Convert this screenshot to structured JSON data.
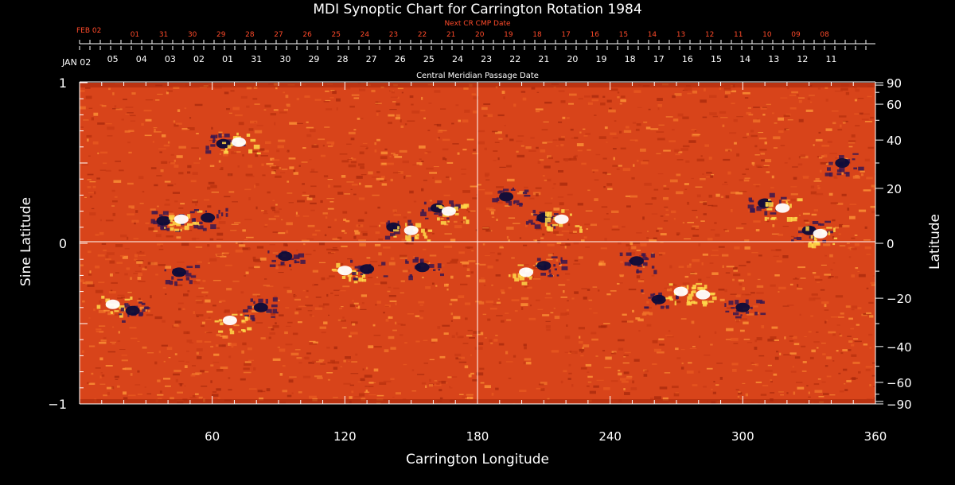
{
  "chart_data": {
    "type": "heatmap",
    "title": "MDI Synoptic Chart for Carrington Rotation 1984",
    "xlabel": "Carrington Longitude",
    "ylabel_left": "Sine Latitude",
    "ylabel_right": "Latitude",
    "xlim": [
      0,
      360
    ],
    "ylim": [
      -1,
      1
    ],
    "x_ticks": [
      60,
      120,
      180,
      240,
      300,
      360
    ],
    "y_ticks_left": [
      {
        "value": 1,
        "label": "1"
      },
      {
        "value": 0,
        "label": "0"
      },
      {
        "value": -1,
        "label": "−1"
      }
    ],
    "y_ticks_right": [
      {
        "deg": 90,
        "label": "90"
      },
      {
        "deg": 60,
        "label": "60"
      },
      {
        "deg": 40,
        "label": "40"
      },
      {
        "deg": 20,
        "label": "20"
      },
      {
        "deg": 0,
        "label": "0"
      },
      {
        "deg": -20,
        "label": "−20"
      },
      {
        "deg": -40,
        "label": "−40"
      },
      {
        "deg": -60,
        "label": "−60"
      },
      {
        "deg": -90,
        "label": "−90"
      }
    ],
    "cmp_axis_label": "Central Meridian Passage Date",
    "cmp_start_label": "JAN 02",
    "cmp_dates": [
      {
        "lon": 15,
        "label": "05"
      },
      {
        "lon": 28,
        "label": "04"
      },
      {
        "lon": 41,
        "label": "03"
      },
      {
        "lon": 54,
        "label": "02"
      },
      {
        "lon": 67,
        "label": "01"
      },
      {
        "lon": 80,
        "label": "31"
      },
      {
        "lon": 93,
        "label": "30"
      },
      {
        "lon": 106,
        "label": "29"
      },
      {
        "lon": 119,
        "label": "28"
      },
      {
        "lon": 132,
        "label": "27"
      },
      {
        "lon": 145,
        "label": "26"
      },
      {
        "lon": 158,
        "label": "25"
      },
      {
        "lon": 171,
        "label": "24"
      },
      {
        "lon": 184,
        "label": "23"
      },
      {
        "lon": 197,
        "label": "22"
      },
      {
        "lon": 210,
        "label": "21"
      },
      {
        "lon": 223,
        "label": "20"
      },
      {
        "lon": 236,
        "label": "19"
      },
      {
        "lon": 249,
        "label": "18"
      },
      {
        "lon": 262,
        "label": "17"
      },
      {
        "lon": 275,
        "label": "16"
      },
      {
        "lon": 288,
        "label": "15"
      },
      {
        "lon": 301,
        "label": "14"
      },
      {
        "lon": 314,
        "label": "13"
      },
      {
        "lon": 327,
        "label": "12"
      },
      {
        "lon": 340,
        "label": "11"
      }
    ],
    "next_cr_label": "Next CR CMP Date",
    "next_cr_start_label": "FEB 02",
    "next_cr_dates": [
      {
        "lon": 25,
        "label": "01"
      },
      {
        "lon": 38,
        "label": "31"
      },
      {
        "lon": 51,
        "label": "30"
      },
      {
        "lon": 64,
        "label": "29"
      },
      {
        "lon": 77,
        "label": "28"
      },
      {
        "lon": 90,
        "label": "27"
      },
      {
        "lon": 103,
        "label": "26"
      },
      {
        "lon": 116,
        "label": "25"
      },
      {
        "lon": 129,
        "label": "24"
      },
      {
        "lon": 142,
        "label": "23"
      },
      {
        "lon": 155,
        "label": "22"
      },
      {
        "lon": 168,
        "label": "21"
      },
      {
        "lon": 181,
        "label": "20"
      },
      {
        "lon": 194,
        "label": "19"
      },
      {
        "lon": 207,
        "label": "18"
      },
      {
        "lon": 220,
        "label": "17"
      },
      {
        "lon": 233,
        "label": "16"
      },
      {
        "lon": 246,
        "label": "15"
      },
      {
        "lon": 259,
        "label": "14"
      },
      {
        "lon": 272,
        "label": "13"
      },
      {
        "lon": 285,
        "label": "12"
      },
      {
        "lon": 298,
        "label": "11"
      },
      {
        "lon": 311,
        "label": "10"
      },
      {
        "lon": 324,
        "label": "09"
      },
      {
        "lon": 337,
        "label": "08"
      }
    ],
    "grid": "center crosshair at 180 longitude and 0 latitude",
    "colors": {
      "background_field": "#d8441a",
      "positive_polarity": "#ffffff",
      "positive_mid": "#ffd84a",
      "negative_polarity": "#0c0c3a",
      "negative_mid": "#3a1850",
      "next_cr_text": "#ff4a2a",
      "axes": "#ffffff"
    },
    "active_regions": [
      {
        "lon": 15,
        "sinlat": -0.38,
        "polarity": "positive"
      },
      {
        "lon": 24,
        "sinlat": -0.42,
        "polarity": "negative"
      },
      {
        "lon": 38,
        "sinlat": 0.14,
        "polarity": "negative"
      },
      {
        "lon": 46,
        "sinlat": 0.15,
        "polarity": "positive"
      },
      {
        "lon": 58,
        "sinlat": 0.16,
        "polarity": "negative"
      },
      {
        "lon": 45,
        "sinlat": -0.18,
        "polarity": "negative"
      },
      {
        "lon": 68,
        "sinlat": -0.48,
        "polarity": "positive"
      },
      {
        "lon": 82,
        "sinlat": -0.4,
        "polarity": "negative"
      },
      {
        "lon": 65,
        "sinlat": 0.62,
        "polarity": "negative"
      },
      {
        "lon": 72,
        "sinlat": 0.63,
        "polarity": "positive"
      },
      {
        "lon": 93,
        "sinlat": -0.08,
        "polarity": "negative"
      },
      {
        "lon": 120,
        "sinlat": -0.17,
        "polarity": "positive"
      },
      {
        "lon": 130,
        "sinlat": -0.16,
        "polarity": "negative"
      },
      {
        "lon": 142,
        "sinlat": 0.1,
        "polarity": "negative"
      },
      {
        "lon": 150,
        "sinlat": 0.08,
        "polarity": "positive"
      },
      {
        "lon": 162,
        "sinlat": 0.22,
        "polarity": "negative"
      },
      {
        "lon": 167,
        "sinlat": 0.2,
        "polarity": "positive"
      },
      {
        "lon": 155,
        "sinlat": -0.15,
        "polarity": "negative"
      },
      {
        "lon": 193,
        "sinlat": 0.29,
        "polarity": "negative"
      },
      {
        "lon": 210,
        "sinlat": 0.16,
        "polarity": "negative"
      },
      {
        "lon": 218,
        "sinlat": 0.15,
        "polarity": "positive"
      },
      {
        "lon": 202,
        "sinlat": -0.18,
        "polarity": "positive"
      },
      {
        "lon": 210,
        "sinlat": -0.14,
        "polarity": "negative"
      },
      {
        "lon": 262,
        "sinlat": -0.35,
        "polarity": "negative"
      },
      {
        "lon": 272,
        "sinlat": -0.3,
        "polarity": "positive"
      },
      {
        "lon": 282,
        "sinlat": -0.32,
        "polarity": "positive"
      },
      {
        "lon": 300,
        "sinlat": -0.4,
        "polarity": "negative"
      },
      {
        "lon": 252,
        "sinlat": -0.11,
        "polarity": "negative"
      },
      {
        "lon": 310,
        "sinlat": 0.25,
        "polarity": "negative"
      },
      {
        "lon": 318,
        "sinlat": 0.22,
        "polarity": "positive"
      },
      {
        "lon": 330,
        "sinlat": 0.08,
        "polarity": "negative"
      },
      {
        "lon": 335,
        "sinlat": 0.06,
        "polarity": "positive"
      },
      {
        "lon": 345,
        "sinlat": 0.5,
        "polarity": "negative"
      }
    ]
  }
}
